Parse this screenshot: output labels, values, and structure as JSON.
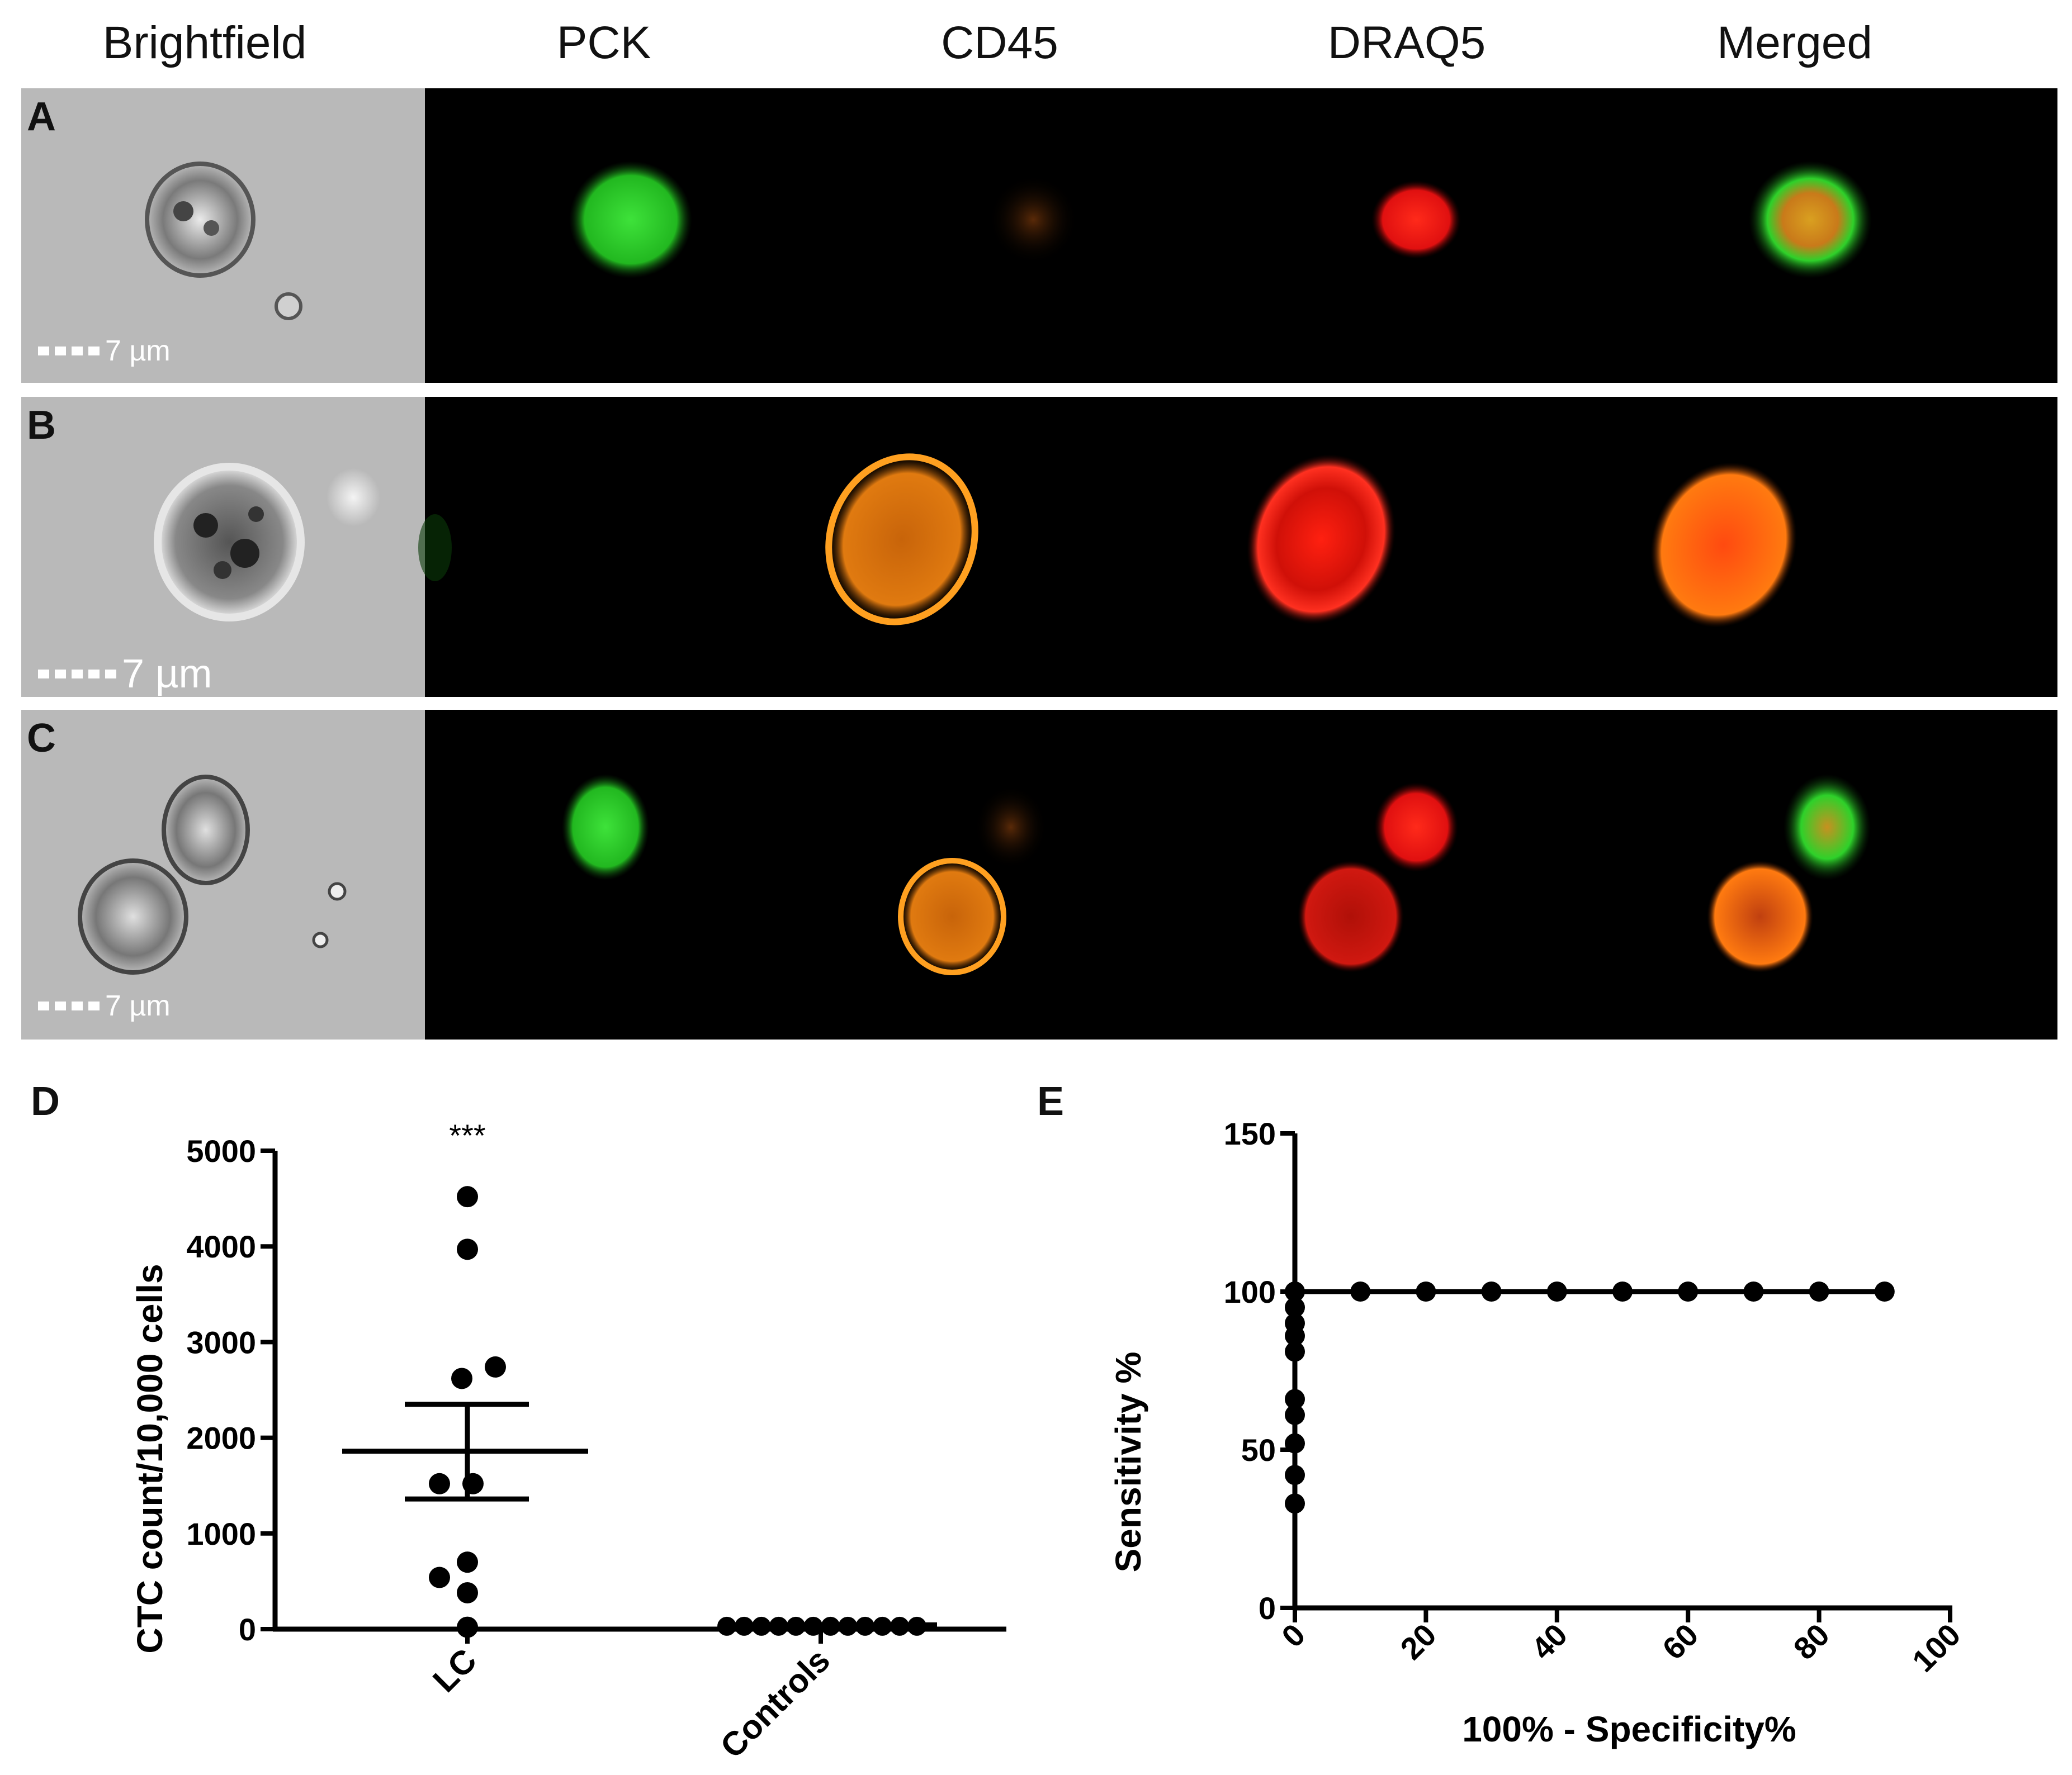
{
  "columns": [
    "Brightfield",
    "PCK",
    "CD45",
    "DRAQ5",
    "Merged"
  ],
  "rows": [
    {
      "letter": "A",
      "scale": "7 µm"
    },
    {
      "letter": "B",
      "scale": "7 µm"
    },
    {
      "letter": "C",
      "scale": "7 µm"
    }
  ],
  "colors": {
    "pck": "#2ed12a",
    "cd45": "#ff8a10",
    "draq5": "#ff1a10",
    "brightfield": "#b9b9b9"
  },
  "panel_d": {
    "letter": "D",
    "significance": "***"
  },
  "panel_e": {
    "letter": "E"
  },
  "chart_data": [
    {
      "type": "scatter",
      "panel": "D",
      "ylabel": "CTC count/10,000 cells",
      "xlabel": "",
      "categories": [
        "LC",
        "Controls"
      ],
      "ylim": [
        0,
        5000
      ],
      "yticks": [
        "0",
        "1000",
        "2000",
        "3000",
        "4000",
        "5000"
      ],
      "series": [
        {
          "category": "LC",
          "values": [
            4520,
            3970,
            2620,
            2740,
            1520,
            1520,
            700,
            540,
            380,
            20
          ],
          "mean": 1860,
          "sem_upper": 2350,
          "sem_lower": 1360
        },
        {
          "category": "Controls",
          "values": [
            30,
            30,
            30,
            30,
            30,
            30,
            30,
            30,
            30,
            30,
            30,
            30
          ],
          "mean": 30
        }
      ]
    },
    {
      "type": "line",
      "panel": "E",
      "title": "",
      "xlabel": "100% - Specificity%",
      "ylabel": "Sensitivity %",
      "xlim": [
        0,
        100
      ],
      "ylim": [
        0,
        150
      ],
      "xticks": [
        "0",
        "20",
        "40",
        "60",
        "80",
        "100"
      ],
      "yticks": [
        "0",
        "50",
        "100",
        "150"
      ],
      "x": [
        0,
        0,
        0,
        0,
        0,
        0,
        0,
        0,
        0,
        0,
        0,
        10,
        20,
        30,
        40,
        50,
        60,
        70,
        80,
        90
      ],
      "y": [
        33,
        42,
        52,
        61,
        66,
        81,
        86,
        90,
        95,
        100,
        100,
        100,
        100,
        100,
        100,
        100,
        100,
        100,
        100,
        100
      ]
    }
  ]
}
